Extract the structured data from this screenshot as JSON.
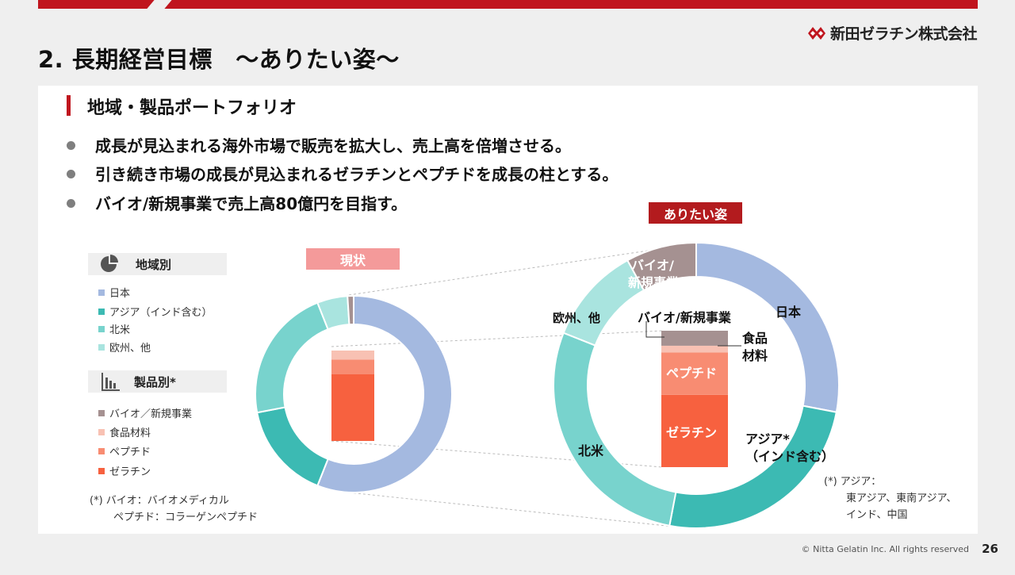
{
  "header": {
    "company_name": "新田ゼラチン株式会社",
    "title": "2. 長期経営目標　～ありたい姿～",
    "brand_color": "#c0151e"
  },
  "section": {
    "title": "地域・製品ポートフォリオ"
  },
  "bullets": [
    "成長が見込まれる海外市場で販売を拡大し、売上高を倍増させる。",
    "引き続き市場の成長が見込まれるゼラチンとペプチドを成長の柱とする。",
    "バイオ/新規事業で売上高80億円を目指す。"
  ],
  "legend": {
    "region_title": "地域別",
    "region_icon": "pie-icon",
    "region_items": [
      {
        "label": "日本",
        "color": "#a4b9e0"
      },
      {
        "label": "アジア（インド含む）",
        "color": "#3cbab3"
      },
      {
        "label": "北米",
        "color": "#78d3cd"
      },
      {
        "label": "欧州、他",
        "color": "#a9e4df"
      }
    ],
    "product_title": "製品別*",
    "product_icon": "bar-chart-icon",
    "product_items": [
      {
        "label": "バイオ／新規事業",
        "color": "#a59191"
      },
      {
        "label": "食品材料",
        "color": "#f8c1b3"
      },
      {
        "label": "ペプチド",
        "color": "#f88c72"
      },
      {
        "label": "ゼラチン",
        "color": "#f7613f"
      }
    ],
    "note_line1": "(*)  バイオ：バイオメディカル",
    "note_line2": "ペプチド：コラーゲンペプチド"
  },
  "tags": {
    "current": "現状",
    "target": "ありたい姿"
  },
  "labels": {
    "japan": "日本",
    "asia_line1": "アジア*",
    "asia_line2": "（インド含む）",
    "na": "北米",
    "eu": "欧州、他",
    "bio_slice_line1": "バイオ/",
    "bio_slice_line2": "新規事業",
    "bio_bar": "バイオ/新規事業",
    "food_line1": "食品",
    "food_line2": "材料",
    "peptide": "ペプチド",
    "gelatin": "ゼラチン"
  },
  "asia_note": {
    "line1": "(*)  アジア：",
    "line2": "東アジア、東南アジア、",
    "line3": "インド、中国"
  },
  "chart_data": [
    {
      "type": "pie",
      "name": "現状 地域別",
      "categories": [
        "日本",
        "アジア（インド含む）",
        "北米",
        "欧州、他",
        "バイオ／新規事業"
      ],
      "values": [
        56,
        16,
        22,
        5,
        1
      ],
      "colors": [
        "#a4b9e0",
        "#3cbab3",
        "#78d3cd",
        "#a9e4df",
        "#a59191"
      ]
    },
    {
      "type": "bar",
      "name": "現状 製品別",
      "stacked": true,
      "categories": [
        "ゼラチン",
        "ペプチド",
        "食品材料"
      ],
      "values": [
        74,
        16,
        10
      ],
      "colors": [
        "#f7613f",
        "#f88c72",
        "#f8c1b3"
      ]
    },
    {
      "type": "pie",
      "name": "ありたい姿 地域別",
      "categories": [
        "日本",
        "アジア（インド含む）",
        "北米",
        "欧州、他",
        "バイオ／新規事業"
      ],
      "values": [
        28,
        25,
        28,
        11,
        8
      ],
      "colors": [
        "#a4b9e0",
        "#3cbab3",
        "#78d3cd",
        "#a9e4df",
        "#a59191"
      ]
    },
    {
      "type": "bar",
      "name": "ありたい姿 製品別",
      "stacked": true,
      "categories": [
        "ゼラチン",
        "ペプチド",
        "食品材料",
        "バイオ／新規事業"
      ],
      "values": [
        53,
        31,
        5,
        11
      ],
      "colors": [
        "#f7613f",
        "#f88c72",
        "#f8c1b3",
        "#a59191"
      ]
    }
  ],
  "footer": {
    "copyright": "© Nitta Gelatin Inc. All rights reserved",
    "page": "26"
  }
}
